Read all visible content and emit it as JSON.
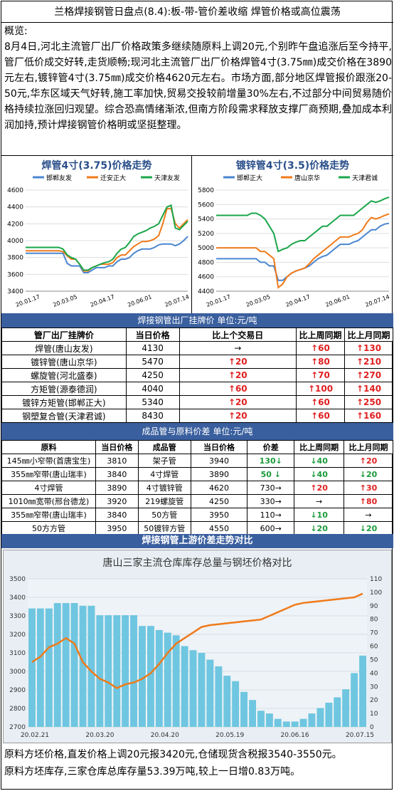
{
  "title": "兰格焊接钢管日盘点(8.4):板-带-管价差收缩 焊管价格或高位震荡",
  "summary": {
    "label": "概览:",
    "text": "8月4日,河北主流管厂出厂价格政策多继续随原料上调20元,个别昨午盘追涨后至今持平,管厂低价成交好转,走货顺畅;现河北主流管厂出厂价格焊管4寸(3.75㎜)成交价格在3890元左右,镀锌管4寸(3.75㎜)成交价格4620元左右。市场方面,部分地区焊管报价跟涨20-50元,华东区域天气好转,施工率加快,贸易交投较前增量30%左右,不过部分中间贸易随价格持续拉涨回归观望。综合恐高情绪渐浓,但南方阶段需求释放支撑厂商预期,叠加成本利润加持,预计焊接钢管价格明或坚挺整理。"
  },
  "colors": {
    "band": "#3a5f9e",
    "up": "#e02020",
    "down": "#1a9a3a",
    "blue": "#4a86d0",
    "orange": "#f07a1a",
    "green": "#1aa64a"
  },
  "chart_data": [
    {
      "type": "line",
      "title": "焊管4寸(3.75)价格走势",
      "xlabel": "",
      "ylabel": "",
      "x_ticks": [
        "20.01.17",
        "20.03.05",
        "20.04.17",
        "20.06.01",
        "20.07.14"
      ],
      "ylim": [
        3400,
        4600
      ],
      "y_ticks": [
        3400,
        3600,
        3800,
        4000,
        4200,
        4400,
        4600
      ],
      "legend_position": "top",
      "series": [
        {
          "name": "邯郸友发",
          "color": "#4a86d0",
          "values": [
            3850,
            3850,
            3850,
            3850,
            3850,
            3850,
            3850,
            3850,
            3850,
            3850,
            3730,
            3700,
            3700,
            3700,
            3620,
            3620,
            3650,
            3680,
            3680,
            3680,
            3700,
            3700,
            3750,
            3780,
            3780,
            3800,
            3850,
            3880,
            3900,
            3900,
            3900,
            3920,
            3950,
            3960,
            3960,
            3960,
            3940,
            3960,
            4000,
            4050
          ]
        },
        {
          "name": "迁安正大",
          "color": "#f07a1a",
          "values": [
            3880,
            3880,
            3880,
            3880,
            3880,
            3880,
            3880,
            3880,
            3880,
            3870,
            3820,
            3780,
            3780,
            3720,
            3640,
            3640,
            3680,
            3700,
            3720,
            3720,
            3720,
            3740,
            3800,
            3830,
            3830,
            3880,
            3930,
            3960,
            3990,
            3990,
            4000,
            4020,
            4060,
            4200,
            4380,
            4380,
            4200,
            4150,
            4200,
            4250
          ]
        },
        {
          "name": "天津友发",
          "color": "#1aa64a",
          "values": [
            3920,
            3920,
            3920,
            3920,
            3920,
            3920,
            3920,
            3920,
            3920,
            3900,
            3830,
            3800,
            3780,
            3720,
            3650,
            3650,
            3680,
            3700,
            3720,
            3740,
            3750,
            3780,
            3850,
            3900,
            3920,
            3980,
            4050,
            4080,
            4100,
            4120,
            4150,
            4170,
            4200,
            4300,
            4400,
            4420,
            4150,
            4130,
            4180,
            4230
          ]
        }
      ]
    },
    {
      "type": "line",
      "title": "镀锌管4寸(3.5)价格走势",
      "xlabel": "",
      "ylabel": "",
      "x_ticks": [
        "20.01.17",
        "20.03.05",
        "20.04.17",
        "20.06.01",
        "20.07.14"
      ],
      "ylim": [
        4400,
        5800
      ],
      "y_ticks": [
        4400,
        4600,
        4800,
        5000,
        5200,
        5400,
        5600,
        5800
      ],
      "legend_position": "top",
      "series": [
        {
          "name": "邯郸正大",
          "color": "#4a86d0",
          "values": [
            4850,
            4850,
            4850,
            4850,
            4850,
            4850,
            4850,
            4850,
            4850,
            4850,
            4800,
            4800,
            4750,
            4750,
            4550,
            4550,
            4600,
            4650,
            4680,
            4700,
            4720,
            4750,
            4800,
            4850,
            4880,
            4900,
            4950,
            5000,
            5050,
            5050,
            5050,
            5080,
            5100,
            5150,
            5200,
            5250,
            5250,
            5300,
            5330,
            5340
          ]
        },
        {
          "name": "唐山京华",
          "color": "#f07a1a",
          "values": [
            5000,
            5000,
            5000,
            5000,
            5000,
            5000,
            5000,
            5000,
            5000,
            5000,
            4950,
            4950,
            4900,
            4850,
            4450,
            4500,
            4600,
            4650,
            4680,
            4700,
            4720,
            4780,
            4850,
            4900,
            4950,
            5000,
            5050,
            5100,
            5150,
            5150,
            5150,
            5180,
            5200,
            5250,
            5350,
            5420,
            5400,
            5420,
            5450,
            5470
          ]
        },
        {
          "name": "天津君诚",
          "color": "#1aa64a",
          "values": [
            5450,
            5450,
            5450,
            5450,
            5450,
            5450,
            5450,
            5450,
            5480,
            5480,
            5450,
            5400,
            5300,
            5200,
            4950,
            4980,
            5000,
            5050,
            5080,
            5100,
            5100,
            5150,
            5200,
            5250,
            5300,
            5300,
            5350,
            5400,
            5450,
            5450,
            5450,
            5450,
            5500,
            5550,
            5600,
            5650,
            5630,
            5650,
            5680,
            5700
          ]
        }
      ]
    },
    {
      "type": "line",
      "title": "唐山三家主流仓库库存总量与钢坯价格对比",
      "xlabel": "",
      "ylabel": "",
      "x_ticks": [
        "20.02.21",
        "20.03.20",
        "20.04.20",
        "20.05.19",
        "20.06.16",
        "20.07.15"
      ],
      "ylim": [
        2700,
        3500
      ],
      "y_ticks": [
        2700,
        2800,
        2900,
        3000,
        3100,
        3200,
        3300,
        3400,
        3500
      ],
      "y2lim": [
        0,
        110
      ],
      "y2_ticks": [
        0,
        10,
        20,
        30,
        40,
        50,
        60,
        70,
        80,
        90,
        100,
        110
      ],
      "legend_position": "none",
      "series": [
        {
          "name": "",
          "color": "#f07a1a",
          "axis": "left",
          "values": [
            3050,
            3080,
            3130,
            3150,
            3180,
            3150,
            3050,
            3000,
            2960,
            2940,
            2910,
            2930,
            2940,
            2960,
            2990,
            3040,
            3100,
            3150,
            3180,
            3210,
            3240,
            3250,
            3255,
            3260,
            3265,
            3270,
            3275,
            3280,
            3300,
            3320,
            3340,
            3360,
            3370,
            3375,
            3380,
            3385,
            3390,
            3395,
            3400,
            3420
          ]
        },
        {
          "name": "",
          "color": "#6fc6e0",
          "axis": "right",
          "values": [
            88,
            88,
            88,
            92,
            92,
            92,
            90,
            90,
            83,
            83,
            83,
            83,
            83,
            75,
            75,
            72,
            70,
            68,
            60,
            57,
            55,
            50,
            45,
            38,
            34,
            26,
            20,
            12,
            10,
            6,
            4,
            4,
            6,
            10,
            14,
            18,
            22,
            28,
            40,
            53
          ]
        }
      ]
    }
  ],
  "table1": {
    "band": "焊接钢管出厂挂牌价    单位:元/吨",
    "headers": [
      "管厂出厂挂牌价",
      "当日价格",
      "比上个交易日",
      "比上周同期",
      "比上月同期"
    ],
    "rows": [
      {
        "name": "焊管(唐山友发)",
        "price": "4130",
        "d": "→",
        "dd": "flat",
        "w": "↑60",
        "wd": "up",
        "m": "↑130",
        "md": "up"
      },
      {
        "name": "镀锌管(唐山京华)",
        "price": "5470",
        "d": "↑20",
        "dd": "up",
        "w": "↑80",
        "wd": "up",
        "m": "↑210",
        "md": "up"
      },
      {
        "name": "螺旋管(河北盛泰)",
        "price": "4250",
        "d": "↑20",
        "dd": "up",
        "w": "↑70",
        "wd": "up",
        "m": "↑270",
        "md": "up"
      },
      {
        "name": "方矩管(源泰德润)",
        "price": "4040",
        "d": "↑60",
        "dd": "up",
        "w": "↑100",
        "wd": "up",
        "m": "↑140",
        "md": "up"
      },
      {
        "name": "镀锌方矩管(邯郸正大)",
        "price": "5340",
        "d": "↑20",
        "dd": "up",
        "w": "↑60",
        "wd": "up",
        "m": "↑250",
        "md": "up"
      },
      {
        "name": "钢塑复合管(天津君诚)",
        "price": "8430",
        "d": "↑20",
        "dd": "up",
        "w": "↑60",
        "wd": "up",
        "m": "↑160",
        "md": "up"
      }
    ]
  },
  "table2": {
    "band": "成品管与原料价差    单位:元/吨",
    "headers": [
      "原料",
      "当日价格",
      "成品管",
      "当日价格",
      "价差",
      "比上周同期",
      "比上月同期"
    ],
    "rows": [
      {
        "raw": "145㎜小窄带(首唐宝生)",
        "rp": "3810",
        "prod": "架子管",
        "pp": "3940",
        "diff": "130↓",
        "dfd": "down",
        "w": "↓40",
        "wd": "down",
        "m": "↑20",
        "md": "up"
      },
      {
        "raw": "355㎜窄带(唐山瑞丰)",
        "rp": "3840",
        "prod": "4寸焊管",
        "pp": "3890",
        "diff": "50 ↓",
        "dfd": "down",
        "w": "↓40",
        "wd": "down",
        "m": "↓20",
        "md": "down"
      },
      {
        "raw": "4寸焊管",
        "rp": "3890",
        "prod": "4寸镀锌管",
        "pp": "4620",
        "diff": "730→",
        "dfd": "flat",
        "w": "↑20",
        "wd": "up",
        "m": "↑30",
        "md": "up"
      },
      {
        "raw": "1010㎜宽带(邢台德龙)",
        "rp": "3920",
        "prod": "219螺旋管",
        "pp": "4250",
        "diff": "330→",
        "dfd": "flat",
        "w": "→",
        "wd": "flat",
        "m": "↑80",
        "md": "up"
      },
      {
        "raw": "355㎜窄带(唐山瑞丰)",
        "rp": "3840",
        "prod": "50方管",
        "pp": "3950",
        "diff": "110→",
        "dfd": "flat",
        "w": "↓10",
        "wd": "down",
        "m": "→",
        "md": "flat"
      },
      {
        "raw": "50方方管",
        "rp": "3950",
        "prod": "50镀锌方管",
        "pp": "4550",
        "diff": "600→",
        "dfd": "flat",
        "w": "↓20",
        "wd": "down",
        "m": "↓20",
        "md": "down"
      }
    ]
  },
  "bottom_band": "焊接钢管上游价差走势对比",
  "footer": {
    "line1": "原料方坯价格,直发价格上调20元报3420元,仓储现货含税报3540-3550元。",
    "line2": "原料方坯库存,三家仓库总库存量53.39万吨,较上一日增0.83万吨。"
  }
}
